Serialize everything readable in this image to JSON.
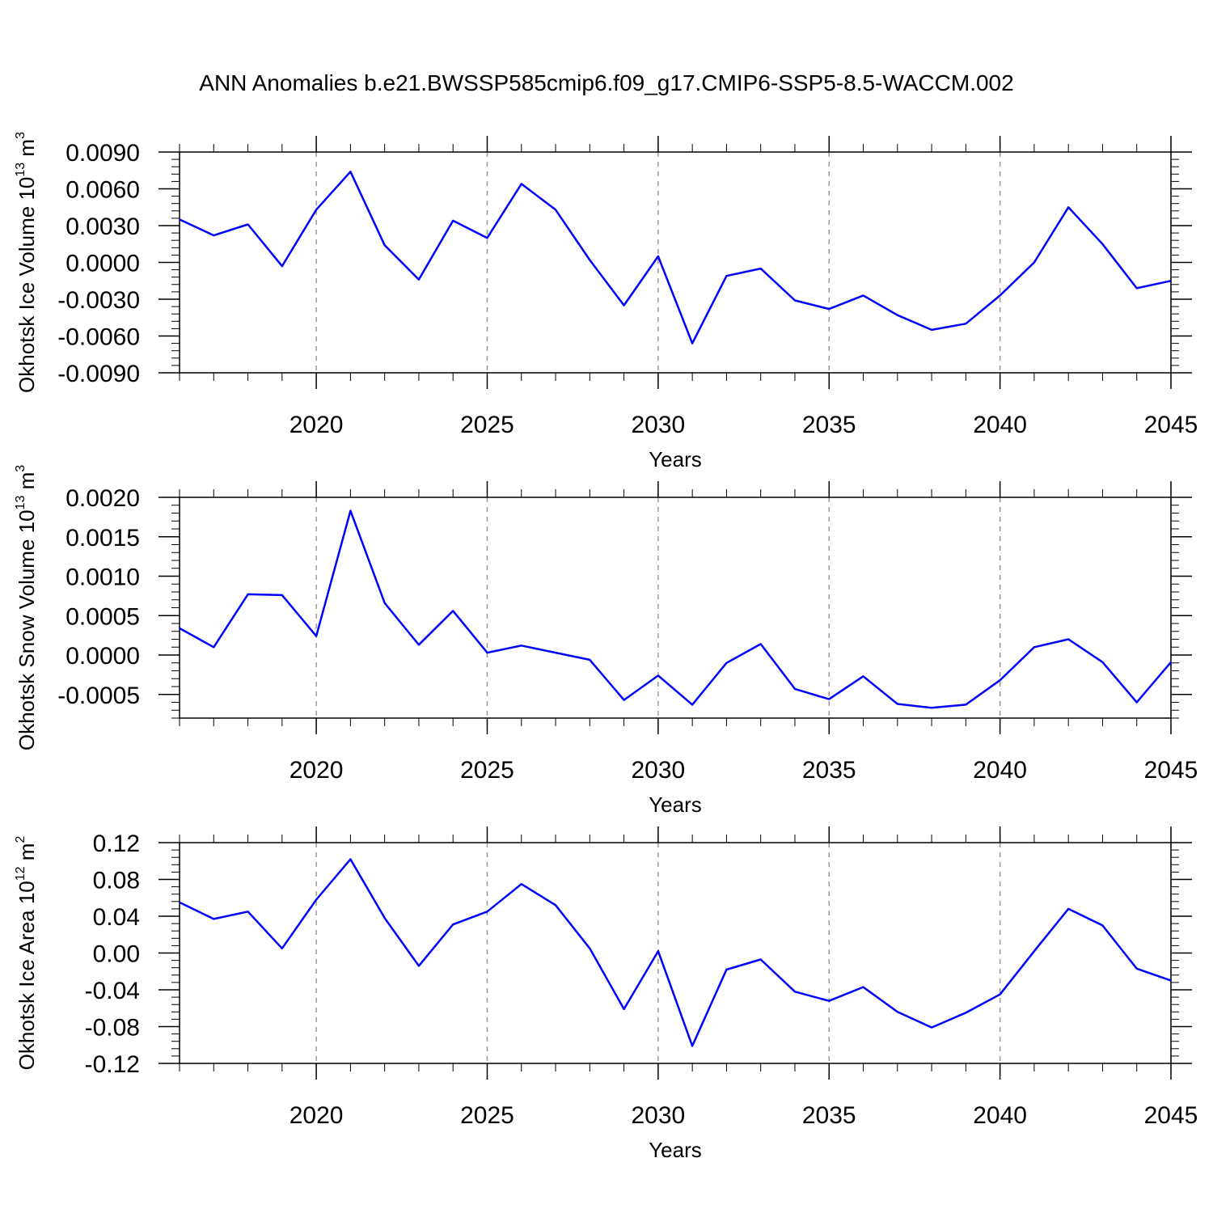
{
  "figure": {
    "title": "ANN Anomalies b.e21.BWSSP585cmip6.f09_g17.CMIP6-SSP5-8.5-WACCM.002",
    "line_color": "#0000ff",
    "grid_color": "#999999"
  },
  "chart_data": [
    {
      "type": "line",
      "ylabel": "Okhotsk Ice Volume",
      "ylabel_exp": "13",
      "ylabel_unit_exp": "3",
      "xlabel": "Years",
      "xlim": [
        2016,
        2045
      ],
      "ylim": [
        -0.009,
        0.009
      ],
      "x_ticks": [
        2020,
        2025,
        2030,
        2035,
        2040,
        2045
      ],
      "x_tick_labels": [
        "2020",
        "2025",
        "2030",
        "2035",
        "2040",
        "2045"
      ],
      "y_ticks": [
        0.009,
        0.006,
        0.003,
        0.0,
        -0.003,
        -0.006,
        -0.009
      ],
      "y_tick_labels": [
        "0.0090",
        "0.0060",
        "0.0030",
        "0.0000",
        "-0.0030",
        "-0.0060",
        "-0.0090"
      ],
      "grid": "vertical dashed at major x ticks",
      "series": [
        {
          "x": [
            2016,
            2017,
            2018,
            2019,
            2020,
            2021,
            2022,
            2023,
            2024,
            2025,
            2026,
            2027,
            2028,
            2029,
            2030,
            2031,
            2032,
            2033,
            2034,
            2035,
            2036,
            2037,
            2038,
            2039,
            2040,
            2041,
            2042,
            2043,
            2044,
            2045
          ],
          "values": [
            0.0035,
            0.0022,
            0.0031,
            -0.0003,
            0.0043,
            0.0074,
            0.0014,
            -0.0014,
            0.0034,
            0.002,
            0.0064,
            0.0043,
            0.0002,
            -0.0035,
            0.0005,
            -0.0066,
            -0.0011,
            -0.0005,
            -0.0031,
            -0.0038,
            -0.0027,
            -0.0043,
            -0.0055,
            -0.005,
            -0.0027,
            0.0,
            0.0045,
            0.0015,
            -0.0021,
            -0.0015
          ]
        }
      ]
    },
    {
      "type": "line",
      "ylabel": "Okhotsk Snow Volume",
      "ylabel_exp": "13",
      "ylabel_unit_exp": "3",
      "xlabel": "Years",
      "xlim": [
        2016,
        2045
      ],
      "ylim": [
        -0.0008,
        0.002
      ],
      "x_ticks": [
        2020,
        2025,
        2030,
        2035,
        2040,
        2045
      ],
      "x_tick_labels": [
        "2020",
        "2025",
        "2030",
        "2035",
        "2040",
        "2045"
      ],
      "y_ticks": [
        0.002,
        0.0015,
        0.001,
        0.0005,
        0.0,
        -0.0005
      ],
      "y_tick_labels": [
        "0.0020",
        "0.0015",
        "0.0010",
        "0.0005",
        "0.0000",
        "-0.0005"
      ],
      "grid": "vertical dashed at major x ticks",
      "series": [
        {
          "x": [
            2016,
            2017,
            2018,
            2019,
            2020,
            2021,
            2022,
            2023,
            2024,
            2025,
            2026,
            2027,
            2028,
            2029,
            2030,
            2031,
            2032,
            2033,
            2034,
            2035,
            2036,
            2037,
            2038,
            2039,
            2040,
            2041,
            2042,
            2043,
            2044,
            2045
          ],
          "values": [
            0.00034,
            0.0001,
            0.00077,
            0.00076,
            0.00024,
            0.00183,
            0.00066,
            0.00013,
            0.00056,
            3e-05,
            0.00012,
            3e-05,
            -6e-05,
            -0.00057,
            -0.00026,
            -0.00063,
            -0.0001,
            0.00014,
            -0.00043,
            -0.00056,
            -0.00027,
            -0.00062,
            -0.00067,
            -0.00063,
            -0.00032,
            0.0001,
            0.0002,
            -9e-05,
            -0.0006,
            -9e-05
          ]
        }
      ]
    },
    {
      "type": "line",
      "ylabel": "Okhotsk Ice Area",
      "ylabel_exp": "12",
      "ylabel_unit_exp": "2",
      "xlabel": "Years",
      "xlim": [
        2016,
        2045
      ],
      "ylim": [
        -0.12,
        0.12
      ],
      "x_ticks": [
        2020,
        2025,
        2030,
        2035,
        2040,
        2045
      ],
      "x_tick_labels": [
        "2020",
        "2025",
        "2030",
        "2035",
        "2040",
        "2045"
      ],
      "y_ticks": [
        0.12,
        0.08,
        0.04,
        0.0,
        -0.04,
        -0.08,
        -0.12
      ],
      "y_tick_labels": [
        "0.12",
        "0.08",
        "0.04",
        "0.00",
        "-0.04",
        "-0.08",
        "-0.12"
      ],
      "grid": "vertical dashed at major x ticks",
      "series": [
        {
          "x": [
            2016,
            2017,
            2018,
            2019,
            2020,
            2021,
            2022,
            2023,
            2024,
            2025,
            2026,
            2027,
            2028,
            2029,
            2030,
            2031,
            2032,
            2033,
            2034,
            2035,
            2036,
            2037,
            2038,
            2039,
            2040,
            2041,
            2042,
            2043,
            2044,
            2045
          ],
          "values": [
            0.055,
            0.037,
            0.045,
            0.005,
            0.058,
            0.102,
            0.038,
            -0.014,
            0.031,
            0.045,
            0.075,
            0.052,
            0.005,
            -0.061,
            0.002,
            -0.101,
            -0.018,
            -0.007,
            -0.042,
            -0.052,
            -0.037,
            -0.064,
            -0.081,
            -0.065,
            -0.045,
            0.002,
            0.048,
            0.03,
            -0.017,
            -0.03
          ]
        }
      ]
    }
  ]
}
